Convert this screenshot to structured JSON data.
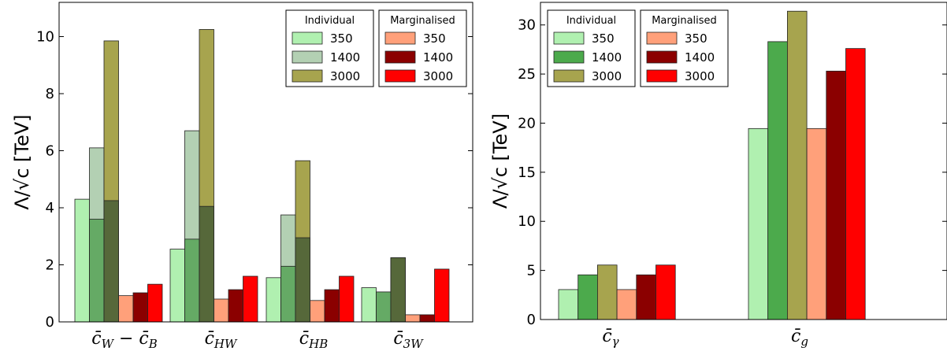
{
  "chart_data": [
    {
      "type": "bar",
      "ylabel": "Λ/√c [TeV]",
      "ylim": [
        0,
        11.2
      ],
      "yticks": [
        0,
        2,
        4,
        6,
        8,
        10
      ],
      "grid": false,
      "categories": [
        {
          "base": "c̄",
          "sub": "W",
          "mid": " − ",
          "base2": "c̄",
          "sub2": "B"
        },
        {
          "base": "c̄",
          "sub": "HW"
        },
        {
          "base": "c̄",
          "sub": "HB"
        },
        {
          "base": "c̄",
          "sub": "3W"
        }
      ],
      "series": [
        {
          "group": "Individual",
          "label": "350",
          "values": [
            4.3,
            2.55,
            1.55,
            1.2
          ]
        },
        {
          "group": "Individual",
          "label": "1400",
          "values": [
            6.1,
            6.7,
            3.75,
            1.05
          ]
        },
        {
          "group": "Individual",
          "label": "3000",
          "values": [
            9.85,
            10.25,
            5.65,
            2.25
          ]
        },
        {
          "group": "Marginalised",
          "label": "350",
          "values": [
            0.92,
            0.8,
            0.75,
            0.25
          ]
        },
        {
          "group": "Marginalised",
          "label": "1400",
          "values": [
            1.02,
            1.13,
            1.13,
            0.25
          ]
        },
        {
          "group": "Marginalised",
          "label": "3000",
          "values": [
            1.32,
            1.6,
            1.6,
            1.85
          ]
        }
      ],
      "inner_bars": {
        "1400": [
          3.6,
          2.9,
          1.95,
          1.05
        ],
        "3000": [
          4.25,
          4.05,
          2.95,
          2.25
        ]
      },
      "legends": [
        {
          "title": "Individual",
          "placement": "top-right-left",
          "entries": [
            "350",
            "1400",
            "3000"
          ]
        },
        {
          "title": "Marginalised",
          "placement": "top-right",
          "entries": [
            "350",
            "1400",
            "3000"
          ]
        }
      ]
    },
    {
      "type": "bar",
      "ylabel": "Λ/√c [TeV]",
      "ylim": [
        0,
        32.3
      ],
      "yticks": [
        0,
        5,
        10,
        15,
        20,
        25,
        30
      ],
      "grid": false,
      "categories": [
        {
          "base": "c̄",
          "sub": "γ"
        },
        {
          "base": "c̄",
          "sub": "g"
        }
      ],
      "series": [
        {
          "group": "Individual",
          "label": "350",
          "values": [
            3.05,
            19.45
          ]
        },
        {
          "group": "Individual",
          "label": "1400",
          "values": [
            4.55,
            28.3
          ]
        },
        {
          "group": "Individual",
          "label": "3000",
          "values": [
            5.55,
            31.4
          ]
        },
        {
          "group": "Marginalised",
          "label": "350",
          "values": [
            3.05,
            19.45
          ]
        },
        {
          "group": "Marginalised",
          "label": "1400",
          "values": [
            4.55,
            25.3
          ]
        },
        {
          "group": "Marginalised",
          "label": "3000",
          "values": [
            5.55,
            27.6
          ]
        }
      ],
      "legends": [
        {
          "title": "Individual",
          "placement": "top-left",
          "entries": [
            "350",
            "1400",
            "3000"
          ]
        },
        {
          "title": "Marginalised",
          "placement": "top-left",
          "entries": [
            "350",
            "1400",
            "3000"
          ]
        }
      ]
    }
  ],
  "colors": {
    "ind_350": "#b0f0b0",
    "ind_1400_left": "#b3d0b3",
    "ind_1400_right": "#4caa4c",
    "ind_3000": "#a7a44e",
    "inner_1400": "#65aa65",
    "inner_3000": "#56683a",
    "marg_350": "#ffa07a",
    "marg_1400": "#8b0000",
    "marg_3000": "#ff0000",
    "axis": "#000000"
  }
}
